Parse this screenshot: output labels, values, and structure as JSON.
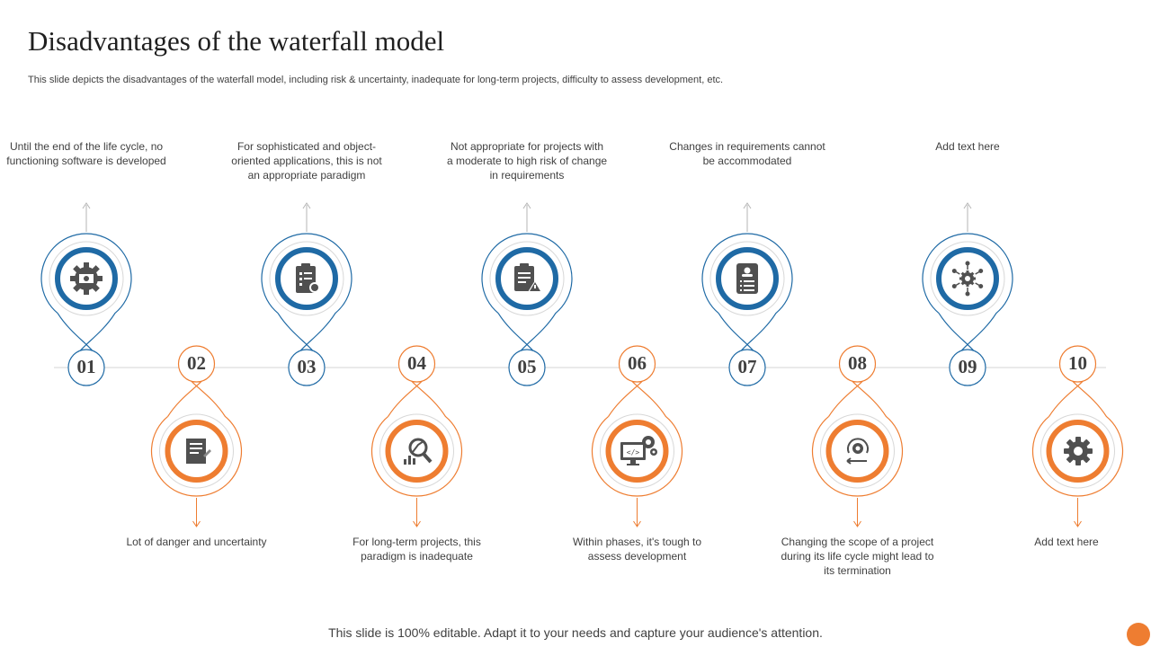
{
  "title": "Disadvantages of the waterfall model",
  "subtitle": "This slide depicts the disadvantages of the waterfall model, including risk & uncertainty, inadequate for long-term projects, difficulty to assess development, etc.",
  "colors": {
    "blue": "#1f6aa5",
    "orange": "#ee7d31",
    "icon_gray": "#505050",
    "line_gray": "#d0d0d0"
  },
  "steps": [
    {
      "number": "01",
      "position": "top",
      "color": "blue",
      "icon": "gear-money-icon",
      "text": "Until the end of the life cycle, no functioning software  is developed"
    },
    {
      "number": "02",
      "position": "bottom",
      "color": "orange",
      "icon": "document-pen-icon",
      "text": "Lot of danger and uncertainty"
    },
    {
      "number": "03",
      "position": "top",
      "color": "blue",
      "icon": "clipboard-gear-icon",
      "text": "For sophisticated and object-oriented applications, this is not an appropriate  paradigm"
    },
    {
      "number": "04",
      "position": "bottom",
      "color": "orange",
      "icon": "chart-search-icon",
      "text": "For long-term projects, this paradigm  is inadequate"
    },
    {
      "number": "05",
      "position": "top",
      "color": "blue",
      "icon": "clipboard-warning-icon",
      "text": "Not appropriate  for projects with a moderate to high risk of change in requirements"
    },
    {
      "number": "06",
      "position": "bottom",
      "color": "orange",
      "icon": "monitor-code-gears-icon",
      "text": "Within phases, it's tough to assess development"
    },
    {
      "number": "07",
      "position": "top",
      "color": "blue",
      "icon": "profile-list-icon",
      "text": "Changes  in requirements cannot be accommodated"
    },
    {
      "number": "08",
      "position": "bottom",
      "color": "orange",
      "icon": "cycle-arrow-icon",
      "text": "Changing the scope of a project during its life cycle might lead to its termination"
    },
    {
      "number": "09",
      "position": "top",
      "color": "blue",
      "icon": "network-gear-icon",
      "text": "Add text here"
    },
    {
      "number": "10",
      "position": "bottom",
      "color": "orange",
      "icon": "gear-icon",
      "text": "Add text here"
    }
  ],
  "footer": "This slide is 100% editable. Adapt it to your needs and capture your audience's attention."
}
